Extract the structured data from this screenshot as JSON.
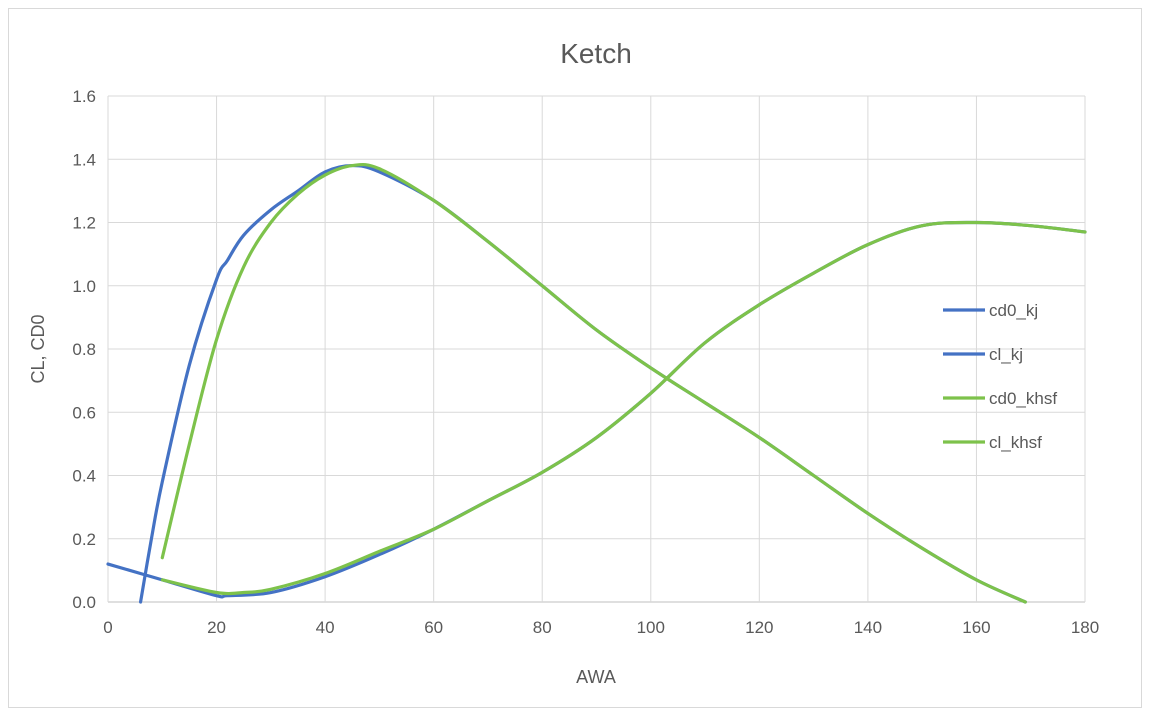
{
  "chart_data": {
    "type": "line",
    "title": "Ketch",
    "xlabel": "AWA",
    "ylabel": "CL, CD0",
    "xlim": [
      0,
      180
    ],
    "ylim": [
      0,
      1.6
    ],
    "xticks": [
      0,
      20,
      40,
      60,
      80,
      100,
      120,
      140,
      160,
      180
    ],
    "yticks": [
      0.0,
      0.2,
      0.4,
      0.6,
      0.8,
      1.0,
      1.2,
      1.4,
      1.6
    ],
    "grid": true,
    "legend_position": "right",
    "series": [
      {
        "name": "cd0_kj",
        "color": "#4472C4",
        "x": [
          0,
          10,
          20,
          22,
          30,
          40,
          50,
          60,
          70,
          80,
          90,
          100,
          110,
          120,
          130,
          140,
          150,
          160,
          170,
          180
        ],
        "y": [
          0.12,
          0.07,
          0.02,
          0.02,
          0.03,
          0.08,
          0.15,
          0.23,
          0.32,
          0.41,
          0.52,
          0.66,
          0.82,
          0.94,
          1.04,
          1.13,
          1.19,
          1.2,
          1.19,
          1.17
        ]
      },
      {
        "name": "cl_kj",
        "color": "#4472C4",
        "x": [
          6,
          8,
          10,
          15,
          20,
          22,
          25,
          30,
          35,
          40,
          45,
          50,
          60,
          70,
          80,
          90,
          100,
          110,
          120,
          130,
          140,
          150,
          160,
          169
        ],
        "y": [
          0.0,
          0.2,
          0.38,
          0.75,
          1.02,
          1.08,
          1.16,
          1.24,
          1.3,
          1.36,
          1.38,
          1.36,
          1.27,
          1.14,
          1.0,
          0.86,
          0.74,
          0.63,
          0.52,
          0.4,
          0.28,
          0.17,
          0.07,
          0.0
        ]
      },
      {
        "name": "cd0_khsf",
        "color": "#7DC24B",
        "x": [
          10,
          20,
          25,
          30,
          40,
          50,
          60,
          70,
          80,
          90,
          100,
          110,
          120,
          130,
          140,
          150,
          160,
          170,
          180
        ],
        "y": [
          0.07,
          0.03,
          0.03,
          0.04,
          0.09,
          0.16,
          0.23,
          0.32,
          0.41,
          0.52,
          0.66,
          0.82,
          0.94,
          1.04,
          1.13,
          1.19,
          1.2,
          1.19,
          1.17
        ]
      },
      {
        "name": "cl_khsf",
        "color": "#7DC24B",
        "x": [
          10,
          15,
          20,
          25,
          30,
          35,
          40,
          45,
          50,
          60,
          70,
          80,
          90,
          100,
          110,
          120,
          130,
          140,
          150,
          160,
          169
        ],
        "y": [
          0.14,
          0.5,
          0.83,
          1.06,
          1.2,
          1.29,
          1.35,
          1.38,
          1.37,
          1.27,
          1.14,
          1.0,
          0.86,
          0.74,
          0.63,
          0.52,
          0.4,
          0.28,
          0.17,
          0.07,
          0.0
        ]
      }
    ]
  }
}
